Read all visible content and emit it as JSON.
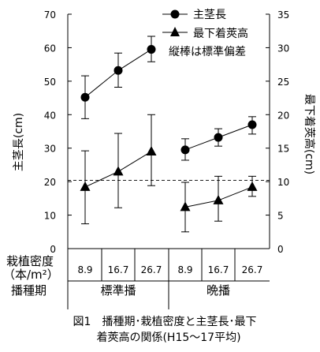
{
  "chart_data": {
    "type": "line",
    "title": "",
    "left_axis": {
      "label": "主茎長(cm)",
      "ylim": [
        0,
        70
      ],
      "ticks": [
        0,
        10,
        20,
        30,
        40,
        50,
        60,
        70
      ],
      "tick_labels": [
        "0",
        "10",
        "20",
        "30",
        "40",
        "50",
        "60",
        "70"
      ]
    },
    "right_axis": {
      "label": "最下着莢高(cm)",
      "ylim": [
        0,
        35
      ],
      "ticks": [
        0,
        5,
        10,
        15,
        20,
        25,
        30,
        35
      ],
      "tick_labels": [
        "0",
        "5",
        "10",
        "15",
        "20",
        "25",
        "30",
        "35"
      ]
    },
    "legend": {
      "placement": "top-right",
      "items": [
        {
          "label": "主茎長",
          "marker": "circle"
        },
        {
          "label": "最下着莢高",
          "marker": "triangle"
        }
      ],
      "note": "縦棒は標準偏差"
    },
    "row_headers": {
      "density": "栽植密度",
      "density_unit": "（本/m²）",
      "period": "播種期"
    },
    "groups": [
      {
        "name": "標準播",
        "x": [
          "8.9",
          "16.7",
          "26.7"
        ]
      },
      {
        "name": "晩播",
        "x": [
          "8.9",
          "16.7",
          "26.7"
        ]
      }
    ],
    "series": [
      {
        "name": "主茎長",
        "axis": "left",
        "marker": "circle",
        "groups": [
          {
            "values": [
              45.2,
              53.2,
              59.5
            ],
            "err_low": [
              38.8,
              48.2,
              55.8
            ],
            "err_high": [
              51.6,
              58.4,
              63.4
            ]
          },
          {
            "values": [
              29.5,
              33.2,
              37.0
            ],
            "err_low": [
              26.4,
              30.6,
              34.2
            ],
            "err_high": [
              32.8,
              35.8,
              39.4
            ]
          }
        ]
      },
      {
        "name": "最下着莢高",
        "axis": "right",
        "marker": "triangle",
        "groups": [
          {
            "values": [
              9.2,
              11.5,
              14.5
            ],
            "err_low": [
              3.7,
              6.1,
              9.4
            ],
            "err_high": [
              14.6,
              17.2,
              20.0
            ]
          },
          {
            "values": [
              6.2,
              7.2,
              9.2
            ],
            "err_low": [
              2.5,
              4.1,
              7.8
            ],
            "err_high": [
              9.9,
              10.8,
              10.8
            ]
          }
        ]
      }
    ],
    "reference_line": {
      "axis": "right",
      "value": 10.2,
      "style": "dashed"
    }
  },
  "caption": {
    "line1": "図1　播種期･栽植密度と主茎長･最下",
    "line2": "着莢高の関係(H15～17平均)"
  }
}
